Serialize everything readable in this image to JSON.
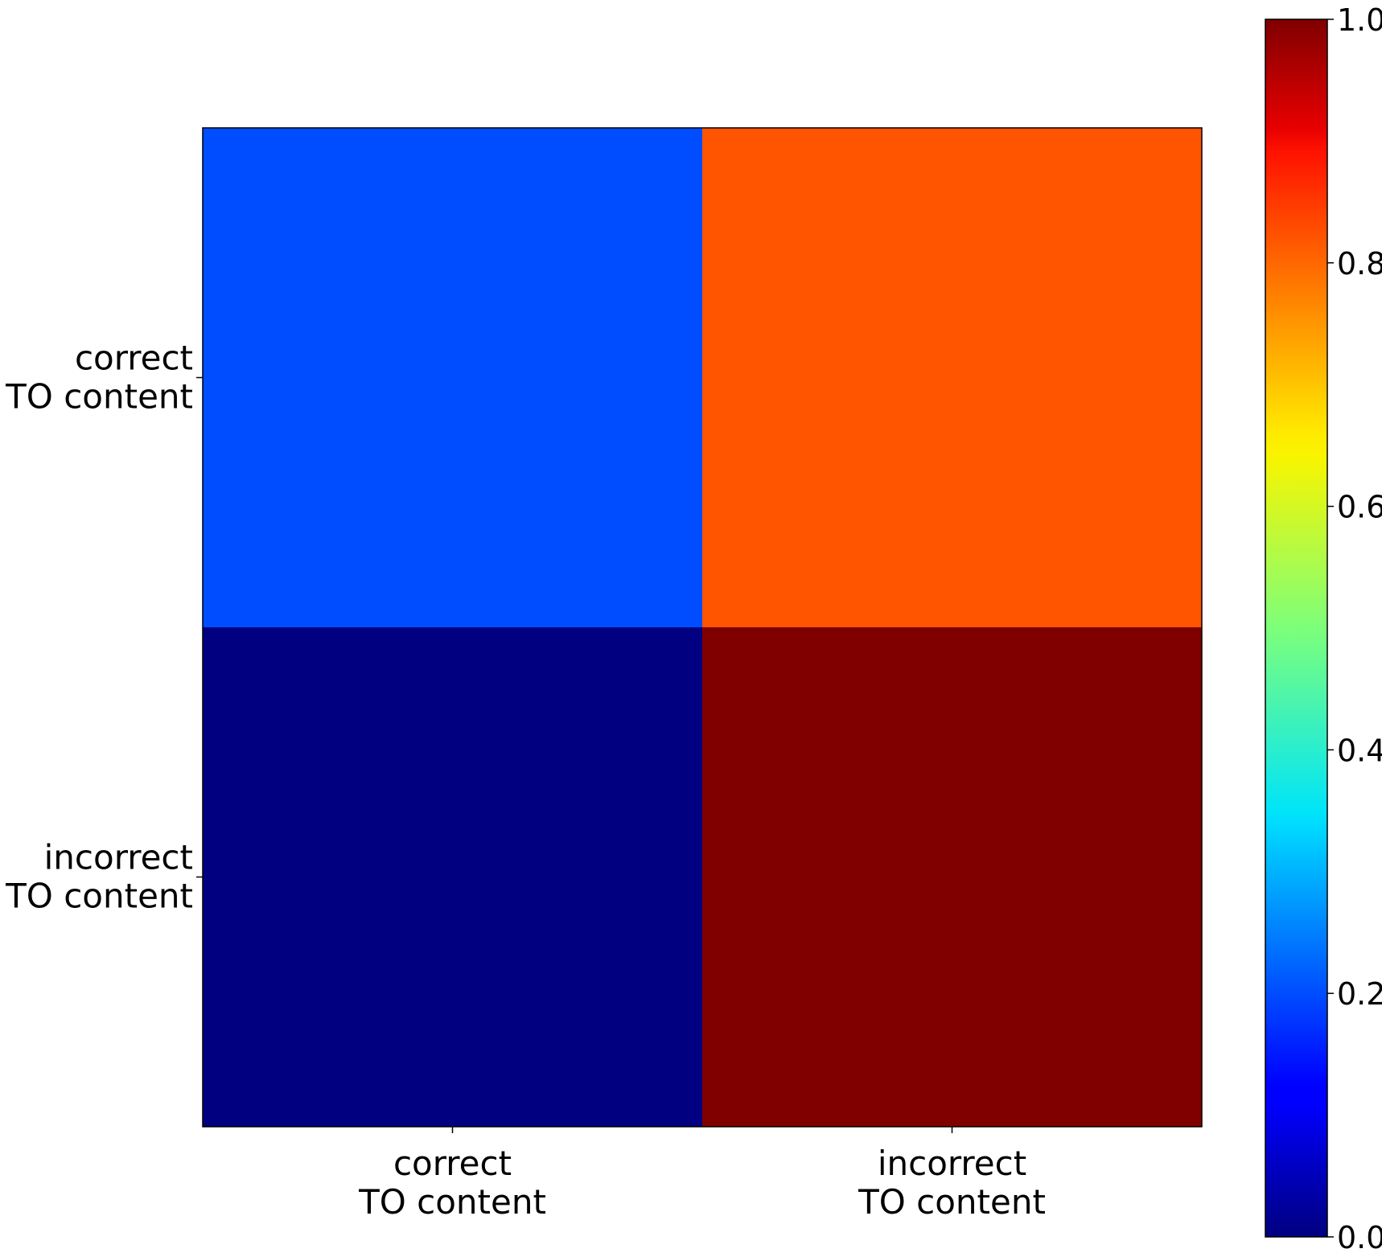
{
  "chart_data": {
    "type": "heatmap",
    "title": "",
    "xlabel": "",
    "ylabel": "",
    "x_categories": [
      [
        "correct",
        "TO content"
      ],
      [
        "incorrect",
        "TO content"
      ]
    ],
    "y_categories": [
      [
        "correct",
        "TO content"
      ],
      [
        "incorrect",
        "TO content"
      ]
    ],
    "values": [
      [
        0.2,
        0.82
      ],
      [
        0.0,
        1.0
      ]
    ],
    "colormap": "jet",
    "colorbar": {
      "range": [
        0.0,
        1.0
      ],
      "ticks": [
        0.0,
        0.2,
        0.4,
        0.6,
        0.8,
        1.0
      ],
      "tick_labels": [
        "0.0",
        "0.2",
        "0.4",
        "0.6",
        "0.8",
        "1.0"
      ],
      "position": "right"
    },
    "grid": false
  }
}
